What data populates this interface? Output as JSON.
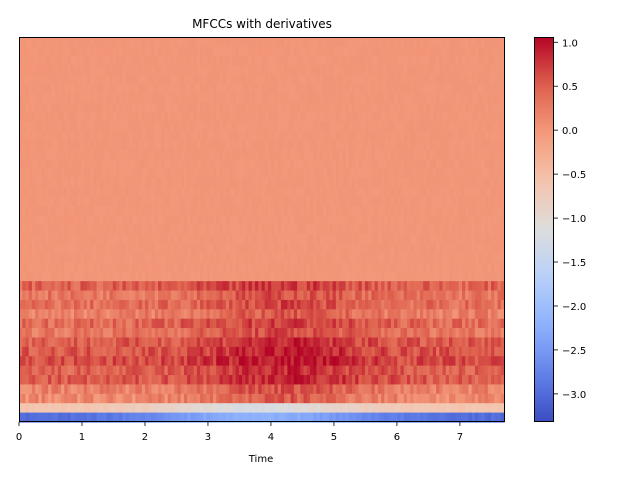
{
  "chart_data": {
    "type": "heatmap",
    "title": "MFCCs with derivatives",
    "xlabel": "Time",
    "ylabel": "",
    "x_range": [
      0,
      7.7
    ],
    "x_ticks": [
      0,
      1,
      2,
      3,
      4,
      5,
      6,
      7
    ],
    "x_tick_labels": [
      "0",
      "1",
      "2",
      "3",
      "4",
      "5",
      "6",
      "7"
    ],
    "y_tick_labels_shown": false,
    "grid": false,
    "colormap": "coolwarm",
    "colorbar": {
      "range": [
        -3.32,
        1.06
      ],
      "ticks": [
        1.0,
        0.5,
        0.0,
        -0.5,
        -1.0,
        -1.5,
        -2.0,
        -2.5,
        -3.0
      ],
      "tick_labels": [
        "1.0",
        "0.5",
        "0.0",
        "−0.5",
        "−1.0",
        "−1.5",
        "−2.0",
        "−2.5",
        "−3.0"
      ]
    },
    "rows_top_to_bottom": [
      {
        "profile": "flat",
        "value": 0.0
      },
      {
        "profile": "flat",
        "value": 0.0
      },
      {
        "profile": "flat",
        "value": 0.0
      },
      {
        "profile": "flat",
        "value": 0.0
      },
      {
        "profile": "flat",
        "value": 0.0
      },
      {
        "profile": "flat",
        "value": 0.0
      },
      {
        "profile": "flat",
        "value": 0.0
      },
      {
        "profile": "flat",
        "value": 0.0
      },
      {
        "profile": "flat",
        "value": 0.0
      },
      {
        "profile": "flat",
        "value": 0.0
      },
      {
        "profile": "flat",
        "value": 0.0
      },
      {
        "profile": "flat",
        "value": 0.0
      },
      {
        "profile": "flat",
        "value": 0.0
      },
      {
        "profile": "flat",
        "value": 0.0
      },
      {
        "profile": "flat",
        "value": 0.0
      },
      {
        "profile": "flat",
        "value": 0.0
      },
      {
        "profile": "flat",
        "value": 0.0
      },
      {
        "profile": "flat",
        "value": 0.0
      },
      {
        "profile": "flat",
        "value": 0.0
      },
      {
        "profile": "flat",
        "value": 0.0
      },
      {
        "profile": "flat",
        "value": 0.0
      },
      {
        "profile": "flat",
        "value": 0.0
      },
      {
        "profile": "flat",
        "value": 0.0
      },
      {
        "profile": "flat",
        "value": 0.0
      },
      {
        "profile": "flat",
        "value": 0.0
      },
      {
        "profile": "flat",
        "value": 0.0
      },
      {
        "profile": "varied",
        "value": 0.45
      },
      {
        "profile": "varied",
        "value": 0.3
      },
      {
        "profile": "varied",
        "value": 0.35
      },
      {
        "profile": "varied",
        "value": 0.2
      },
      {
        "profile": "varied",
        "value": 0.4
      },
      {
        "profile": "varied",
        "value": 0.3
      },
      {
        "profile": "varied",
        "value": 0.5
      },
      {
        "profile": "varied",
        "value": 0.55
      },
      {
        "profile": "varied",
        "value": 0.6
      },
      {
        "profile": "varied",
        "value": 0.45
      },
      {
        "profile": "varied",
        "value": 0.5
      },
      {
        "profile": "varied",
        "value": 0.2
      },
      {
        "profile": "varied",
        "value": 0.1
      },
      {
        "profile": "dip",
        "value": -0.6
      },
      {
        "profile": "low",
        "value": -3.0
      }
    ]
  }
}
